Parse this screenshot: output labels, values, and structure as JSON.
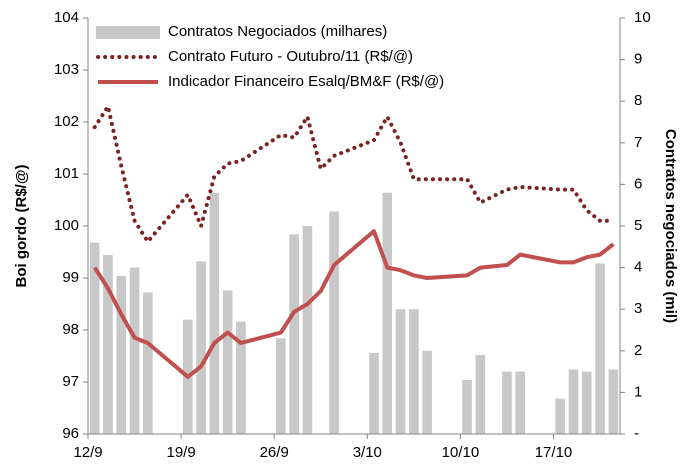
{
  "chart_data": {
    "type": "bar-line",
    "y_label": "Boi gordo (R$/@)",
    "y2_label": "Contratos negociados (mil)",
    "x": [
      "12/9",
      "13/9",
      "14/9",
      "15/9",
      "16/9",
      "19/9",
      "20/9",
      "21/9",
      "22/9",
      "23/9",
      "26/9",
      "27/9",
      "28/9",
      "29/9",
      "30/9",
      "3/10",
      "4/10",
      "5/10",
      "6/10",
      "7/10",
      "10/10",
      "11/10",
      "13/10",
      "14/10",
      "17/10",
      "18/10",
      "19/10",
      "20/10",
      "21/10"
    ],
    "xlim": [
      "12/9",
      "21/10"
    ],
    "xticks": [
      "12/9",
      "19/9",
      "26/9",
      "3/10",
      "10/10",
      "17/10"
    ],
    "ylim": [
      96,
      104
    ],
    "yticks": [
      96,
      97,
      98,
      99,
      100,
      101,
      102,
      103,
      104
    ],
    "y2lim": [
      0,
      10
    ],
    "y2ticks": [
      {
        "value": 0,
        "label": "-"
      },
      1,
      2,
      3,
      4,
      5,
      6,
      7,
      8,
      9,
      10
    ],
    "legend": "top-left",
    "series": [
      {
        "name": "Contratos Negociados (milhares)",
        "type": "bar",
        "axis": "y2",
        "color": "#c8c8c8",
        "values": [
          4.6,
          4.3,
          3.8,
          4.0,
          3.4,
          2.75,
          4.15,
          5.8,
          3.45,
          2.7,
          2.3,
          4.8,
          5.0,
          null,
          5.35,
          1.95,
          5.8,
          3.0,
          3.0,
          2.0,
          1.3,
          1.9,
          1.5,
          1.5,
          0.85,
          1.55,
          1.5,
          4.1,
          1.55
        ]
      },
      {
        "name": "Contrato Futuro - Outubro/11 (R$/@)",
        "type": "dotted-line",
        "color": "#7b2323",
        "values": [
          101.9,
          102.3,
          101.15,
          100.1,
          99.7,
          100.6,
          100.0,
          100.95,
          101.2,
          101.25,
          101.75,
          101.7,
          102.1,
          101.1,
          101.35,
          101.65,
          102.1,
          101.6,
          100.9,
          100.9,
          100.9,
          100.45,
          100.7,
          100.75,
          100.7,
          100.7,
          100.3,
          100.1,
          100.1
        ]
      },
      {
        "name": "Indicador Financeiro Esalq/BM&F (R$/@)",
        "type": "line",
        "color": "#c0504d",
        "values": [
          99.2,
          98.8,
          98.3,
          97.85,
          97.75,
          97.1,
          97.3,
          97.75,
          97.95,
          97.75,
          97.95,
          98.35,
          98.5,
          98.75,
          99.25,
          99.9,
          99.2,
          99.15,
          99.05,
          99.0,
          99.05,
          99.2,
          99.25,
          99.45,
          99.3,
          99.3,
          99.4,
          99.45,
          99.65
        ]
      }
    ]
  }
}
